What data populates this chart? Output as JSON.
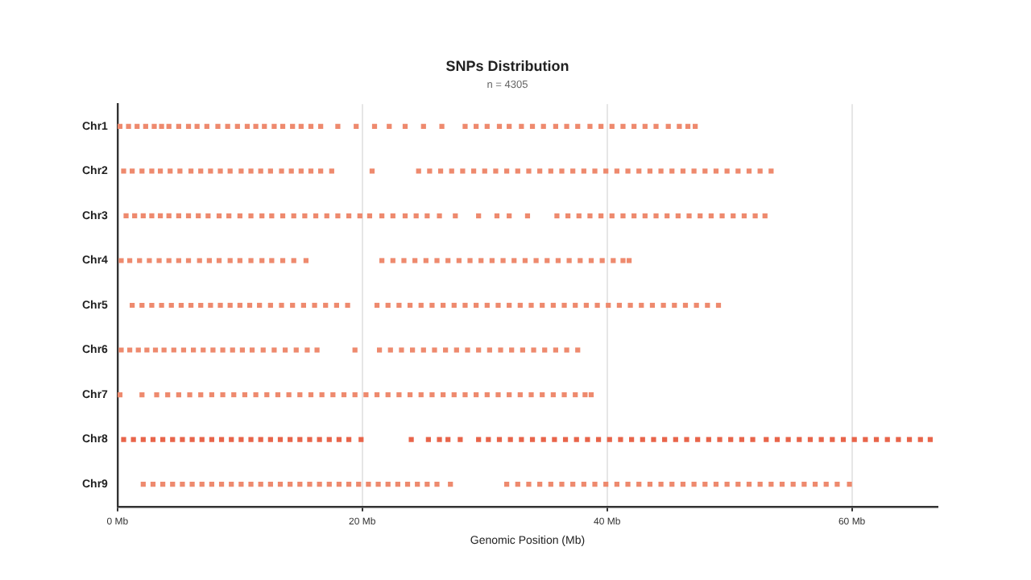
{
  "chart_data": {
    "type": "scatter",
    "title": "SNPs Distribution",
    "subtitle": "n = 4305",
    "xlabel": "Genomic Position (Mb)",
    "orientation": "horizontal",
    "categories": [
      "Chr1",
      "Chr2",
      "Chr3",
      "Chr4",
      "Chr5",
      "Chr6",
      "Chr7",
      "Chr8",
      "Chr9"
    ],
    "xlim": [
      0,
      67
    ],
    "xticks": [
      {
        "value": 0,
        "label": "0 Mb"
      },
      {
        "value": 20,
        "label": "20 Mb"
      },
      {
        "value": 40,
        "label": "40 Mb"
      },
      {
        "value": 60,
        "label": "60 Mb"
      }
    ],
    "grid": "x",
    "marker": "square",
    "series": [
      {
        "color": "#ee8a6e",
        "values": [
          0.2,
          0.9,
          1.6,
          2.3,
          3.0,
          3.6,
          4.2,
          5.0,
          5.8,
          6.5,
          7.3,
          8.2,
          9.0,
          9.8,
          10.6,
          11.3,
          12.0,
          12.8,
          13.5,
          14.3,
          15.0,
          15.8,
          16.6,
          18.0,
          19.5,
          21.0,
          22.2,
          23.5,
          25.0,
          26.5,
          28.4,
          29.3,
          30.2,
          31.2,
          32.0,
          33.0,
          33.9,
          34.8,
          35.8,
          36.7,
          37.6,
          38.6,
          39.5,
          40.4,
          41.3,
          42.2,
          43.1,
          44.0,
          45.0,
          45.9,
          46.6,
          47.2
        ],
        "x": [
          "Chr1",
          "Chr1",
          "Chr1",
          "Chr1",
          "Chr1",
          "Chr1",
          "Chr1",
          "Chr1",
          "Chr1",
          "Chr1",
          "Chr1",
          "Chr1",
          "Chr1",
          "Chr1",
          "Chr1",
          "Chr1",
          "Chr1",
          "Chr1",
          "Chr1",
          "Chr1",
          "Chr1",
          "Chr1",
          "Chr1",
          "Chr1",
          "Chr1",
          "Chr1",
          "Chr1",
          "Chr1",
          "Chr1",
          "Chr1",
          "Chr1",
          "Chr1",
          "Chr1",
          "Chr1",
          "Chr1",
          "Chr1",
          "Chr1",
          "Chr1",
          "Chr1",
          "Chr1",
          "Chr1",
          "Chr1",
          "Chr1",
          "Chr1",
          "Chr1",
          "Chr1",
          "Chr1",
          "Chr1",
          "Chr1",
          "Chr1",
          "Chr1",
          "Chr1"
        ]
      },
      {
        "color": "#ee8a6e",
        "values": [
          0.5,
          1.2,
          2.0,
          2.8,
          3.5,
          4.3,
          5.1,
          6.0,
          6.8,
          7.6,
          8.4,
          9.2,
          10.1,
          10.9,
          11.7,
          12.5,
          13.4,
          14.2,
          15.0,
          15.8,
          16.6,
          17.5,
          20.8,
          24.6,
          25.5,
          26.4,
          27.3,
          28.2,
          29.1,
          30.0,
          30.9,
          31.8,
          32.7,
          33.6,
          34.5,
          35.4,
          36.3,
          37.2,
          38.1,
          39.0,
          39.9,
          40.8,
          41.7,
          42.6,
          43.5,
          44.4,
          45.3,
          46.2,
          47.1,
          48.0,
          48.9,
          49.8,
          50.7,
          51.6,
          52.5,
          53.4
        ],
        "x": [
          "Chr2",
          "Chr2",
          "Chr2",
          "Chr2",
          "Chr2",
          "Chr2",
          "Chr2",
          "Chr2",
          "Chr2",
          "Chr2",
          "Chr2",
          "Chr2",
          "Chr2",
          "Chr2",
          "Chr2",
          "Chr2",
          "Chr2",
          "Chr2",
          "Chr2",
          "Chr2",
          "Chr2",
          "Chr2",
          "Chr2",
          "Chr2",
          "Chr2",
          "Chr2",
          "Chr2",
          "Chr2",
          "Chr2",
          "Chr2",
          "Chr2",
          "Chr2",
          "Chr2",
          "Chr2",
          "Chr2",
          "Chr2",
          "Chr2",
          "Chr2",
          "Chr2",
          "Chr2",
          "Chr2",
          "Chr2",
          "Chr2",
          "Chr2",
          "Chr2",
          "Chr2",
          "Chr2",
          "Chr2",
          "Chr2",
          "Chr2",
          "Chr2",
          "Chr2",
          "Chr2",
          "Chr2",
          "Chr2",
          "Chr2"
        ]
      },
      {
        "color": "#ee8a6e",
        "values": [
          0.7,
          1.4,
          2.1,
          2.8,
          3.5,
          4.2,
          5.0,
          5.8,
          6.6,
          7.4,
          8.3,
          9.1,
          10.0,
          10.9,
          11.8,
          12.6,
          13.5,
          14.4,
          15.3,
          16.2,
          17.1,
          18.0,
          18.9,
          19.8,
          20.6,
          21.6,
          22.5,
          23.5,
          24.4,
          25.3,
          26.3,
          27.6,
          29.5,
          31.0,
          32.0,
          33.5,
          35.9,
          36.8,
          37.7,
          38.6,
          39.5,
          40.4,
          41.3,
          42.2,
          43.1,
          44.0,
          44.9,
          45.8,
          46.7,
          47.6,
          48.5,
          49.4,
          50.3,
          51.2,
          52.1,
          52.9
        ],
        "x": [
          "Chr3",
          "Chr3",
          "Chr3",
          "Chr3",
          "Chr3",
          "Chr3",
          "Chr3",
          "Chr3",
          "Chr3",
          "Chr3",
          "Chr3",
          "Chr3",
          "Chr3",
          "Chr3",
          "Chr3",
          "Chr3",
          "Chr3",
          "Chr3",
          "Chr3",
          "Chr3",
          "Chr3",
          "Chr3",
          "Chr3",
          "Chr3",
          "Chr3",
          "Chr3",
          "Chr3",
          "Chr3",
          "Chr3",
          "Chr3",
          "Chr3",
          "Chr3",
          "Chr3",
          "Chr3",
          "Chr3",
          "Chr3",
          "Chr3",
          "Chr3",
          "Chr3",
          "Chr3",
          "Chr3",
          "Chr3",
          "Chr3",
          "Chr3",
          "Chr3",
          "Chr3",
          "Chr3",
          "Chr3",
          "Chr3",
          "Chr3",
          "Chr3",
          "Chr3",
          "Chr3",
          "Chr3",
          "Chr3",
          "Chr3"
        ]
      },
      {
        "color": "#ee8a6e",
        "values": [
          0.3,
          1.0,
          1.8,
          2.6,
          3.4,
          4.2,
          5.0,
          5.8,
          6.7,
          7.5,
          8.3,
          9.2,
          10.0,
          10.9,
          11.8,
          12.6,
          13.5,
          14.4,
          15.4,
          21.6,
          22.5,
          23.4,
          24.3,
          25.2,
          26.1,
          27.0,
          27.9,
          28.8,
          29.7,
          30.6,
          31.5,
          32.4,
          33.3,
          34.2,
          35.1,
          36.0,
          36.9,
          37.8,
          38.7,
          39.6,
          40.5,
          41.3,
          41.8
        ],
        "x": [
          "Chr4",
          "Chr4",
          "Chr4",
          "Chr4",
          "Chr4",
          "Chr4",
          "Chr4",
          "Chr4",
          "Chr4",
          "Chr4",
          "Chr4",
          "Chr4",
          "Chr4",
          "Chr4",
          "Chr4",
          "Chr4",
          "Chr4",
          "Chr4",
          "Chr4",
          "Chr4",
          "Chr4",
          "Chr4",
          "Chr4",
          "Chr4",
          "Chr4",
          "Chr4",
          "Chr4",
          "Chr4",
          "Chr4",
          "Chr4",
          "Chr4",
          "Chr4",
          "Chr4",
          "Chr4",
          "Chr4",
          "Chr4",
          "Chr4",
          "Chr4",
          "Chr4",
          "Chr4",
          "Chr4",
          "Chr4",
          "Chr4"
        ]
      },
      {
        "color": "#ee8a6e",
        "values": [
          1.2,
          2.0,
          2.8,
          3.6,
          4.4,
          5.2,
          6.0,
          6.8,
          7.6,
          8.4,
          9.2,
          10.0,
          10.8,
          11.6,
          12.5,
          13.4,
          14.3,
          15.2,
          16.1,
          17.0,
          17.9,
          18.8,
          21.2,
          22.1,
          23.0,
          23.9,
          24.8,
          25.7,
          26.6,
          27.5,
          28.4,
          29.3,
          30.2,
          31.1,
          32.0,
          32.9,
          33.8,
          34.7,
          35.6,
          36.5,
          37.4,
          38.3,
          39.2,
          40.1,
          41.0,
          41.9,
          42.8,
          43.7,
          44.6,
          45.5,
          46.4,
          47.3,
          48.2,
          49.1
        ],
        "x": [
          "Chr5",
          "Chr5",
          "Chr5",
          "Chr5",
          "Chr5",
          "Chr5",
          "Chr5",
          "Chr5",
          "Chr5",
          "Chr5",
          "Chr5",
          "Chr5",
          "Chr5",
          "Chr5",
          "Chr5",
          "Chr5",
          "Chr5",
          "Chr5",
          "Chr5",
          "Chr5",
          "Chr5",
          "Chr5",
          "Chr5",
          "Chr5",
          "Chr5",
          "Chr5",
          "Chr5",
          "Chr5",
          "Chr5",
          "Chr5",
          "Chr5",
          "Chr5",
          "Chr5",
          "Chr5",
          "Chr5",
          "Chr5",
          "Chr5",
          "Chr5",
          "Chr5",
          "Chr5",
          "Chr5",
          "Chr5",
          "Chr5",
          "Chr5",
          "Chr5",
          "Chr5",
          "Chr5",
          "Chr5",
          "Chr5",
          "Chr5",
          "Chr5",
          "Chr5",
          "Chr5",
          "Chr5"
        ]
      },
      {
        "color": "#ee8a6e",
        "values": [
          0.3,
          1.0,
          1.7,
          2.4,
          3.1,
          3.8,
          4.6,
          5.4,
          6.2,
          7.0,
          7.8,
          8.6,
          9.4,
          10.2,
          11.0,
          11.9,
          12.8,
          13.7,
          14.6,
          15.5,
          16.3,
          19.4,
          21.4,
          22.3,
          23.2,
          24.1,
          25.0,
          25.9,
          26.8,
          27.7,
          28.6,
          29.5,
          30.4,
          31.3,
          32.2,
          33.1,
          34.0,
          34.9,
          35.8,
          36.7,
          37.6
        ],
        "x": [
          "Chr6",
          "Chr6",
          "Chr6",
          "Chr6",
          "Chr6",
          "Chr6",
          "Chr6",
          "Chr6",
          "Chr6",
          "Chr6",
          "Chr6",
          "Chr6",
          "Chr6",
          "Chr6",
          "Chr6",
          "Chr6",
          "Chr6",
          "Chr6",
          "Chr6",
          "Chr6",
          "Chr6",
          "Chr6",
          "Chr6",
          "Chr6",
          "Chr6",
          "Chr6",
          "Chr6",
          "Chr6",
          "Chr6",
          "Chr6",
          "Chr6",
          "Chr6",
          "Chr6",
          "Chr6",
          "Chr6",
          "Chr6",
          "Chr6",
          "Chr6",
          "Chr6",
          "Chr6",
          "Chr6"
        ]
      },
      {
        "color": "#ee8a6e",
        "values": [
          0.2,
          2.0,
          3.2,
          4.1,
          5.0,
          5.9,
          6.8,
          7.7,
          8.6,
          9.5,
          10.4,
          11.3,
          12.2,
          13.1,
          14.0,
          14.9,
          15.8,
          16.7,
          17.6,
          18.5,
          19.4,
          20.3,
          21.2,
          22.1,
          23.0,
          23.9,
          24.8,
          25.7,
          26.6,
          27.5,
          28.4,
          29.3,
          30.2,
          31.1,
          32.0,
          32.9,
          33.8,
          34.7,
          35.6,
          36.5,
          37.4,
          38.2,
          38.7
        ],
        "x": [
          "Chr7",
          "Chr7",
          "Chr7",
          "Chr7",
          "Chr7",
          "Chr7",
          "Chr7",
          "Chr7",
          "Chr7",
          "Chr7",
          "Chr7",
          "Chr7",
          "Chr7",
          "Chr7",
          "Chr7",
          "Chr7",
          "Chr7",
          "Chr7",
          "Chr7",
          "Chr7",
          "Chr7",
          "Chr7",
          "Chr7",
          "Chr7",
          "Chr7",
          "Chr7",
          "Chr7",
          "Chr7",
          "Chr7",
          "Chr7",
          "Chr7",
          "Chr7",
          "Chr7",
          "Chr7",
          "Chr7",
          "Chr7",
          "Chr7",
          "Chr7",
          "Chr7",
          "Chr7",
          "Chr7",
          "Chr7",
          "Chr7"
        ]
      },
      {
        "color": "#e8644a",
        "values": [
          0.5,
          1.3,
          2.1,
          2.9,
          3.7,
          4.5,
          5.3,
          6.1,
          6.9,
          7.7,
          8.5,
          9.3,
          10.1,
          10.9,
          11.7,
          12.5,
          13.3,
          14.1,
          14.9,
          15.7,
          16.5,
          17.3,
          18.1,
          18.9,
          19.9,
          24.0,
          25.4,
          26.3,
          27.0,
          28.0,
          29.5,
          30.3,
          31.2,
          32.1,
          33.0,
          33.9,
          34.8,
          35.7,
          36.6,
          37.5,
          38.4,
          39.3,
          40.2,
          41.1,
          42.0,
          42.9,
          43.8,
          44.7,
          45.6,
          46.5,
          47.4,
          48.3,
          49.2,
          50.1,
          51.0,
          51.9,
          53.0,
          53.9,
          54.8,
          55.7,
          56.6,
          57.5,
          58.4,
          59.3,
          60.2,
          61.1,
          62.0,
          62.9,
          63.8,
          64.7,
          65.6,
          66.4
        ],
        "x": [
          "Chr8",
          "Chr8",
          "Chr8",
          "Chr8",
          "Chr8",
          "Chr8",
          "Chr8",
          "Chr8",
          "Chr8",
          "Chr8",
          "Chr8",
          "Chr8",
          "Chr8",
          "Chr8",
          "Chr8",
          "Chr8",
          "Chr8",
          "Chr8",
          "Chr8",
          "Chr8",
          "Chr8",
          "Chr8",
          "Chr8",
          "Chr8",
          "Chr8",
          "Chr8",
          "Chr8",
          "Chr8",
          "Chr8",
          "Chr8",
          "Chr8",
          "Chr8",
          "Chr8",
          "Chr8",
          "Chr8",
          "Chr8",
          "Chr8",
          "Chr8",
          "Chr8",
          "Chr8",
          "Chr8",
          "Chr8",
          "Chr8",
          "Chr8",
          "Chr8",
          "Chr8",
          "Chr8",
          "Chr8",
          "Chr8",
          "Chr8",
          "Chr8",
          "Chr8",
          "Chr8",
          "Chr8",
          "Chr8",
          "Chr8",
          "Chr8",
          "Chr8",
          "Chr8",
          "Chr8",
          "Chr8",
          "Chr8",
          "Chr8",
          "Chr8",
          "Chr8",
          "Chr8",
          "Chr8",
          "Chr8",
          "Chr8",
          "Chr8",
          "Chr8",
          "Chr8"
        ]
      },
      {
        "color": "#ee8a6e",
        "values": [
          2.1,
          2.9,
          3.7,
          4.5,
          5.3,
          6.1,
          6.9,
          7.7,
          8.5,
          9.3,
          10.1,
          10.9,
          11.7,
          12.5,
          13.3,
          14.1,
          14.9,
          15.7,
          16.5,
          17.3,
          18.1,
          18.9,
          19.7,
          20.5,
          21.3,
          22.1,
          22.9,
          23.7,
          24.5,
          25.3,
          26.1,
          27.2,
          31.8,
          32.7,
          33.6,
          34.5,
          35.4,
          36.3,
          37.2,
          38.1,
          39.0,
          39.9,
          40.8,
          41.7,
          42.6,
          43.5,
          44.4,
          45.3,
          46.2,
          47.1,
          48.0,
          48.9,
          49.8,
          50.7,
          51.6,
          52.5,
          53.4,
          54.3,
          55.2,
          56.1,
          57.0,
          57.9,
          58.8,
          59.8
        ],
        "x": [
          "Chr9",
          "Chr9",
          "Chr9",
          "Chr9",
          "Chr9",
          "Chr9",
          "Chr9",
          "Chr9",
          "Chr9",
          "Chr9",
          "Chr9",
          "Chr9",
          "Chr9",
          "Chr9",
          "Chr9",
          "Chr9",
          "Chr9",
          "Chr9",
          "Chr9",
          "Chr9",
          "Chr9",
          "Chr9",
          "Chr9",
          "Chr9",
          "Chr9",
          "Chr9",
          "Chr9",
          "Chr9",
          "Chr9",
          "Chr9",
          "Chr9",
          "Chr9",
          "Chr9",
          "Chr9",
          "Chr9",
          "Chr9",
          "Chr9",
          "Chr9",
          "Chr9",
          "Chr9",
          "Chr9",
          "Chr9",
          "Chr9",
          "Chr9",
          "Chr9",
          "Chr9",
          "Chr9",
          "Chr9",
          "Chr9",
          "Chr9",
          "Chr9",
          "Chr9",
          "Chr9",
          "Chr9",
          "Chr9",
          "Chr9",
          "Chr9",
          "Chr9",
          "Chr9",
          "Chr9",
          "Chr9",
          "Chr9",
          "Chr9",
          "Chr9"
        ]
      }
    ]
  }
}
